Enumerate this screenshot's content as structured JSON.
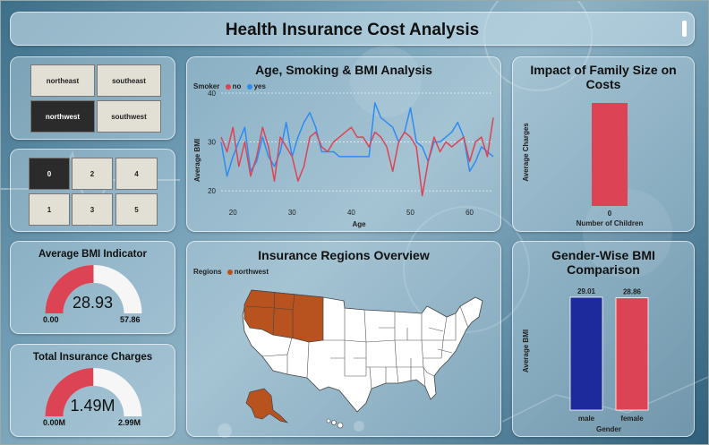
{
  "title": "Health Insurance Cost Analysis",
  "colors": {
    "red": "#dc4456",
    "blue": "#2e8cf0",
    "navy": "#1d2a9c",
    "orange": "#b8521e",
    "selected": "#2b2b2b"
  },
  "region_slicer": {
    "items": [
      {
        "label": "northeast",
        "selected": false
      },
      {
        "label": "southeast",
        "selected": false
      },
      {
        "label": "northwest",
        "selected": true
      },
      {
        "label": "southwest",
        "selected": false
      }
    ]
  },
  "children_slicer": {
    "items": [
      {
        "label": "0",
        "selected": true
      },
      {
        "label": "2",
        "selected": false
      },
      {
        "label": "4",
        "selected": false
      },
      {
        "label": "1",
        "selected": false
      },
      {
        "label": "3",
        "selected": false
      },
      {
        "label": "5",
        "selected": false
      }
    ]
  },
  "bmi_gauge": {
    "title": "Average BMI Indicator",
    "value_label": "28.93",
    "min_label": "0.00",
    "max_label": "57.86",
    "value": 28.93,
    "min": 0,
    "max": 57.86
  },
  "charges_gauge": {
    "title": "Total Insurance Charges",
    "value_label": "1.49M",
    "min_label": "0.00M",
    "max_label": "2.99M",
    "value": 1.49,
    "min": 0,
    "max": 2.99
  },
  "age_chart": {
    "title": "Age, Smoking & BMI Analysis",
    "xlabel": "Age",
    "ylabel": "Average BMI",
    "legend_title": "Smoker",
    "chart_data": {
      "type": "line",
      "xlim": [
        18,
        64
      ],
      "ylim": [
        18,
        40
      ],
      "xticks": [
        20,
        30,
        40,
        50,
        60
      ],
      "yticks": [
        20,
        30,
        40
      ],
      "series": [
        {
          "name": "no",
          "x": [
            18,
            19,
            20,
            21,
            22,
            23,
            24,
            25,
            26,
            27,
            28,
            29,
            30,
            31,
            32,
            33,
            34,
            35,
            36,
            37,
            38,
            39,
            40,
            41,
            42,
            43,
            44,
            45,
            46,
            47,
            48,
            49,
            50,
            51,
            52,
            53,
            54,
            55,
            56,
            57,
            58,
            59,
            60,
            61,
            62,
            63,
            64
          ],
          "values": [
            31,
            28,
            33,
            25,
            30,
            23,
            27,
            33,
            29,
            22,
            31,
            29,
            27,
            22,
            25,
            31,
            32,
            29,
            28,
            30,
            31,
            32,
            33,
            31,
            31,
            29,
            32,
            31,
            29,
            24,
            30,
            32,
            31,
            29,
            19,
            26,
            31,
            28,
            30,
            29,
            30,
            31,
            26,
            30,
            31,
            27,
            35
          ]
        },
        {
          "name": "yes",
          "x": [
            18,
            19,
            20,
            21,
            22,
            23,
            24,
            25,
            26,
            27,
            28,
            29,
            30,
            31,
            32,
            33,
            34,
            35,
            36,
            37,
            38,
            39,
            40,
            41,
            42,
            43,
            44,
            45,
            46,
            47,
            48,
            49,
            50,
            51,
            52,
            53,
            54,
            55,
            56,
            57,
            58,
            59,
            60,
            61,
            62,
            63,
            64
          ],
          "values": [
            30,
            23,
            27,
            30,
            33,
            24,
            26,
            31,
            27,
            25,
            28,
            34,
            27,
            31,
            34,
            36,
            33,
            28,
            28,
            28,
            27,
            27,
            27,
            27,
            27,
            27,
            38,
            35,
            34,
            33,
            30,
            32,
            37,
            30,
            29,
            26,
            30,
            30,
            31,
            32,
            34,
            31,
            24,
            26,
            29,
            28,
            27
          ]
        }
      ]
    }
  },
  "family_chart": {
    "title": "Impact of Family Size on Costs",
    "xlabel": "Number of Children",
    "ylabel": "Average Charges",
    "chart_data": {
      "type": "bar",
      "categories": [
        "0"
      ],
      "values": [
        1
      ]
    }
  },
  "map_chart": {
    "title": "Insurance Regions Overview",
    "legend_title": "Regions",
    "legend_items": [
      "northwest"
    ]
  },
  "gender_chart": {
    "title": "Gender-Wise BMI Comparison",
    "xlabel": "Gender",
    "ylabel": "Average BMI",
    "chart_data": {
      "type": "bar",
      "categories": [
        "male",
        "female"
      ],
      "values": [
        29.01,
        28.86
      ],
      "value_labels": [
        "29.01",
        "28.86"
      ],
      "colors": [
        "#1d2a9c",
        "#dc4456"
      ]
    }
  }
}
